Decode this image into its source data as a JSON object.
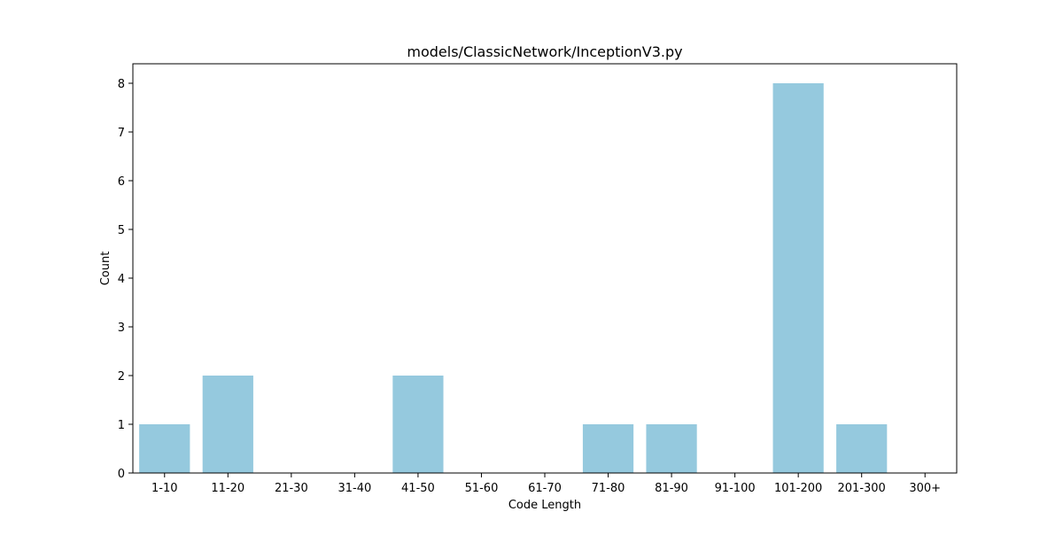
{
  "chart_data": {
    "type": "bar",
    "title": "models/ClassicNetwork/InceptionV3.py",
    "xlabel": "Code Length",
    "ylabel": "Count",
    "categories": [
      "1-10",
      "11-20",
      "21-30",
      "31-40",
      "41-50",
      "51-60",
      "61-70",
      "71-80",
      "81-90",
      "91-100",
      "101-200",
      "201-300",
      "300+"
    ],
    "values": [
      1,
      2,
      0,
      0,
      2,
      0,
      0,
      1,
      1,
      0,
      8,
      1,
      0
    ],
    "ylim": [
      0,
      8.4
    ],
    "yticks": [
      0,
      1,
      2,
      3,
      4,
      5,
      6,
      7,
      8
    ],
    "grid": false,
    "legend": "none",
    "bar_color": "#95c9de"
  }
}
